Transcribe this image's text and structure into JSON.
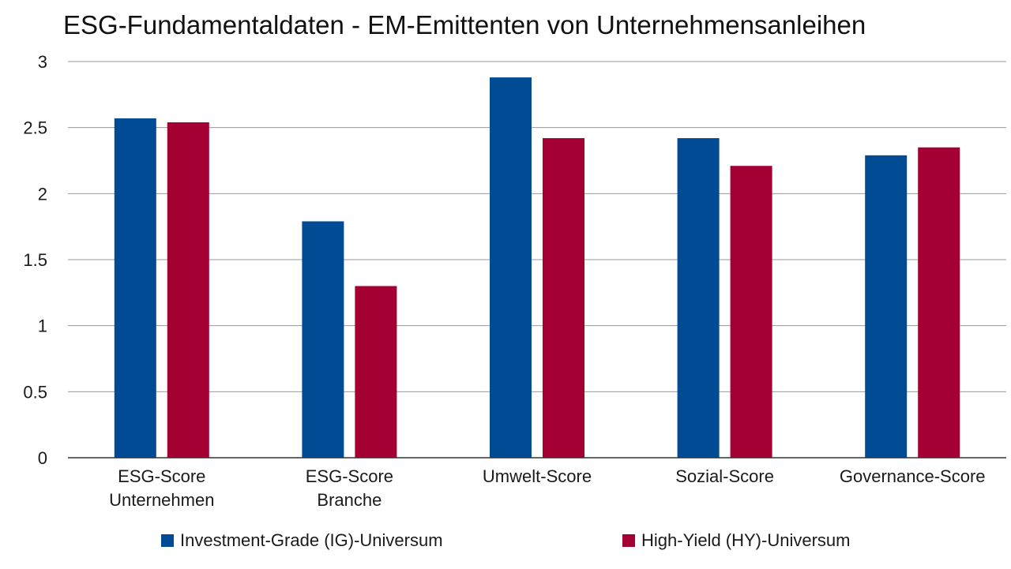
{
  "chart_data": {
    "type": "bar",
    "title": "ESG-Fundamentaldaten - EM-Emittenten von Unternehmensanleihen",
    "xlabel": "",
    "ylabel": "",
    "ylim": [
      0,
      3
    ],
    "yticks": [
      "0",
      "0.5",
      "1",
      "1.5",
      "2",
      "2.5",
      "3"
    ],
    "grid": true,
    "legend_position": "bottom",
    "categories": [
      [
        "ESG-Score",
        "Unternehmen"
      ],
      [
        "ESG-Score",
        "Branche"
      ],
      [
        "Umwelt-Score"
      ],
      [
        "Sozial-Score"
      ],
      [
        "Governance-Score"
      ]
    ],
    "series": [
      {
        "name": "Investment-Grade (IG)-Universum",
        "color": "#004b93",
        "values": [
          2.57,
          1.79,
          2.88,
          2.42,
          2.29
        ]
      },
      {
        "name": "High-Yield (HY)-Universum",
        "color": "#a50034",
        "values": [
          2.54,
          1.3,
          2.42,
          2.21,
          2.35
        ]
      }
    ]
  }
}
